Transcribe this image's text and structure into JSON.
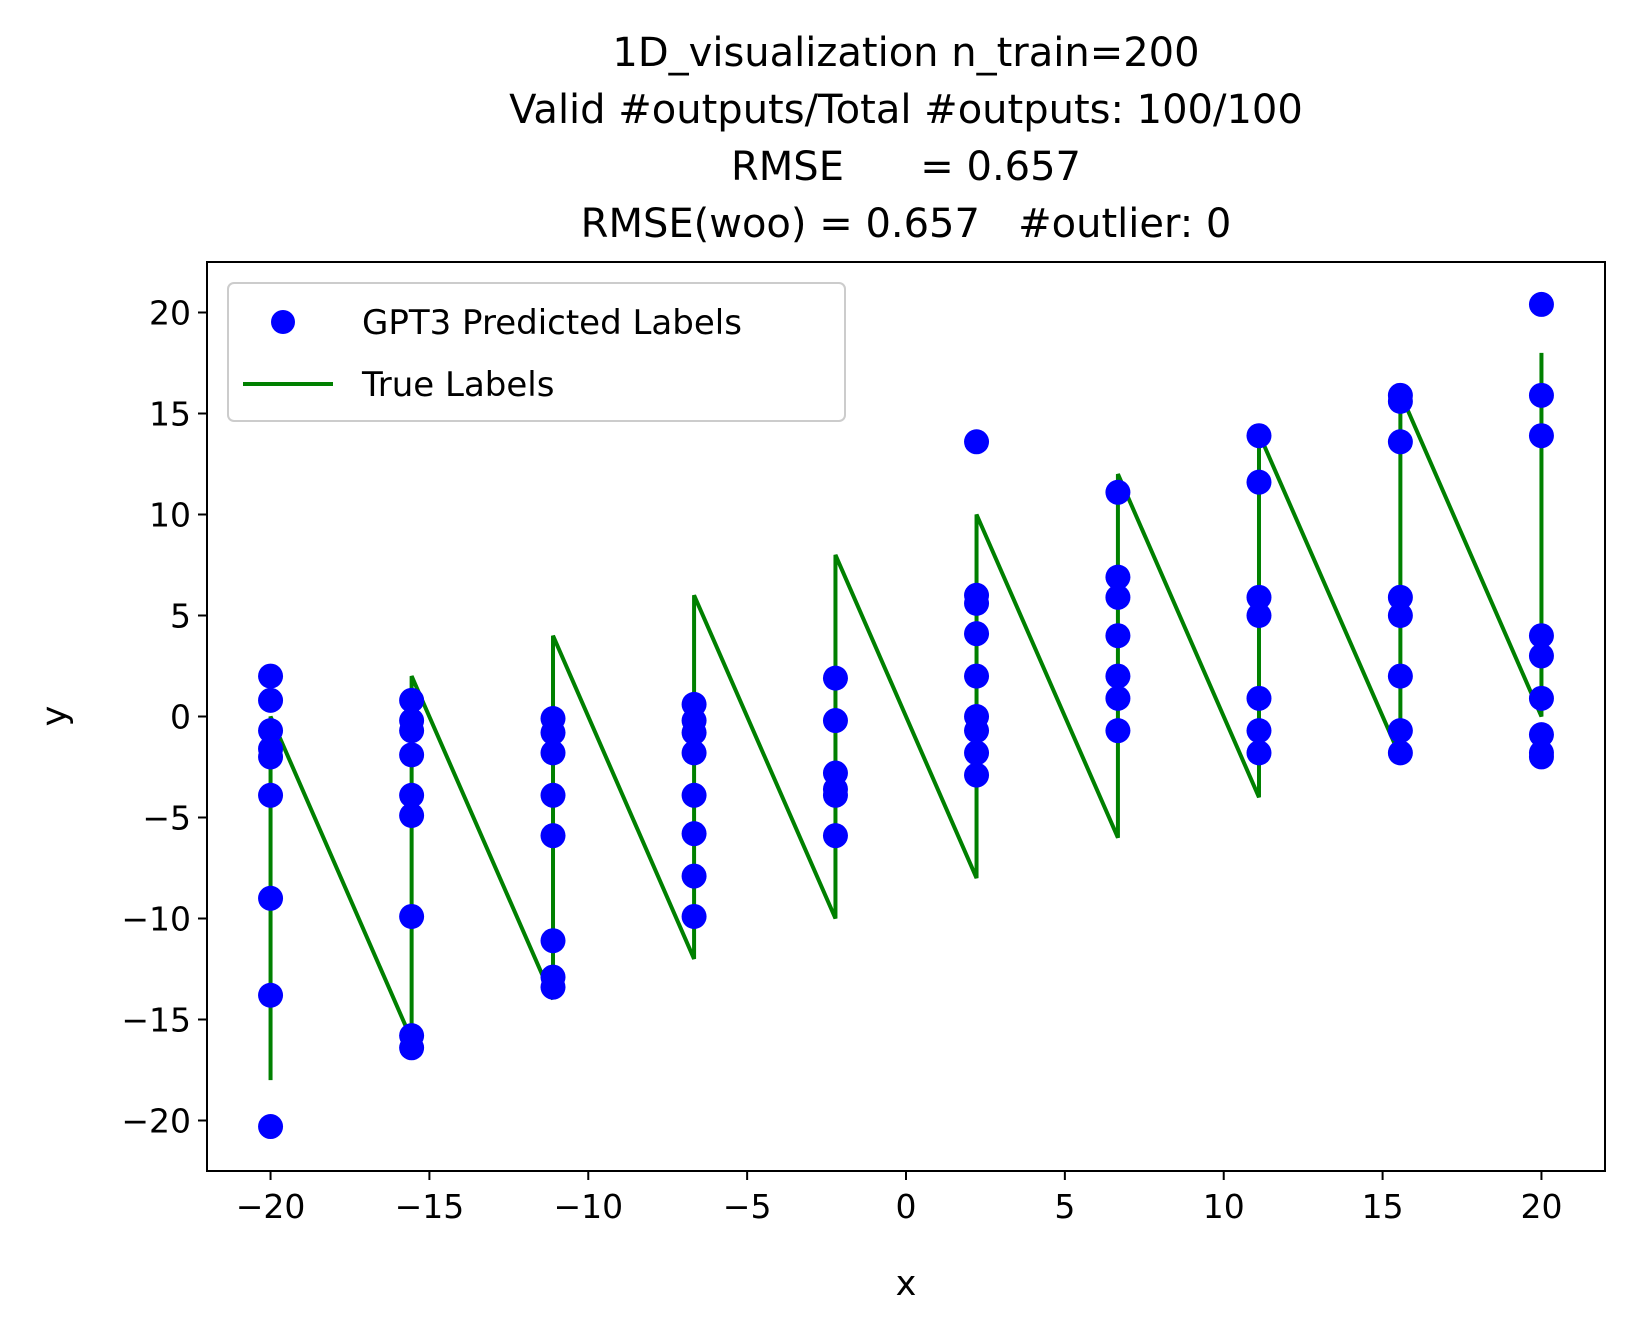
{
  "chart_data": {
    "type": "scatter",
    "title_lines": [
      "1D_visualization  n_train=200",
      "Valid #outputs/Total #outputs: 100/100",
      "RMSE      = 0.657",
      "RMSE(woo) = 0.657   #outlier: 0"
    ],
    "xlabel": "x",
    "ylabel": "y",
    "xlim": [
      -22,
      22
    ],
    "ylim": [
      -22.5,
      22.5
    ],
    "x_ticks": [
      {
        "value": -20,
        "label": "−20"
      },
      {
        "value": -15,
        "label": "−15"
      },
      {
        "value": -10,
        "label": "−10"
      },
      {
        "value": -5,
        "label": "−5"
      },
      {
        "value": 0,
        "label": "0"
      },
      {
        "value": 5,
        "label": "5"
      },
      {
        "value": 10,
        "label": "10"
      },
      {
        "value": 15,
        "label": "15"
      },
      {
        "value": 20,
        "label": "20"
      }
    ],
    "y_ticks": [
      {
        "value": -20,
        "label": "−20"
      },
      {
        "value": -15,
        "label": "−15"
      },
      {
        "value": -10,
        "label": "−10"
      },
      {
        "value": -5,
        "label": "−5"
      },
      {
        "value": 0,
        "label": "0"
      },
      {
        "value": 5,
        "label": "5"
      },
      {
        "value": 10,
        "label": "10"
      },
      {
        "value": 15,
        "label": "15"
      },
      {
        "value": 20,
        "label": "20"
      }
    ],
    "grid": false,
    "legend_position": "top-left",
    "series": [
      {
        "name": "GPT3 Predicted Labels",
        "kind": "scatter",
        "color": "#0000ff",
        "points": [
          [
            -20,
            2
          ],
          [
            -20,
            0.8
          ],
          [
            -20,
            -0.7
          ],
          [
            -20,
            -1.6
          ],
          [
            -20,
            -2
          ],
          [
            -20,
            -3.9
          ],
          [
            -20,
            -9
          ],
          [
            -20,
            -13.8
          ],
          [
            -20,
            -20.3
          ],
          [
            -15.56,
            0.8
          ],
          [
            -15.56,
            -0.2
          ],
          [
            -15.56,
            -0.7
          ],
          [
            -15.56,
            -1.9
          ],
          [
            -15.56,
            -3.9
          ],
          [
            -15.56,
            -4.9
          ],
          [
            -15.56,
            -9.9
          ],
          [
            -15.56,
            -15.8
          ],
          [
            -15.56,
            -16.4
          ],
          [
            -11.11,
            -0.1
          ],
          [
            -11.11,
            -0.8
          ],
          [
            -11.11,
            -1.8
          ],
          [
            -11.11,
            -3.9
          ],
          [
            -11.11,
            -5.9
          ],
          [
            -11.11,
            -11.1
          ],
          [
            -11.11,
            -12.9
          ],
          [
            -11.11,
            -13.4
          ],
          [
            -6.67,
            0.6
          ],
          [
            -6.67,
            -0.2
          ],
          [
            -6.67,
            -0.8
          ],
          [
            -6.67,
            -1.8
          ],
          [
            -6.67,
            -3.9
          ],
          [
            -6.67,
            -5.8
          ],
          [
            -6.67,
            -7.9
          ],
          [
            -6.67,
            -9.9
          ],
          [
            -2.22,
            1.9
          ],
          [
            -2.22,
            -0.2
          ],
          [
            -2.22,
            -2.8
          ],
          [
            -2.22,
            -3.6
          ],
          [
            -2.22,
            -3.9
          ],
          [
            -2.22,
            -5.9
          ],
          [
            2.22,
            13.6
          ],
          [
            2.22,
            6
          ],
          [
            2.22,
            5.6
          ],
          [
            2.22,
            4.1
          ],
          [
            2.22,
            2
          ],
          [
            2.22,
            0
          ],
          [
            2.22,
            -0.7
          ],
          [
            2.22,
            -1.8
          ],
          [
            2.22,
            -2.9
          ],
          [
            6.67,
            11.1
          ],
          [
            6.67,
            6.9
          ],
          [
            6.67,
            5.9
          ],
          [
            6.67,
            4
          ],
          [
            6.67,
            2
          ],
          [
            6.67,
            0.9
          ],
          [
            6.67,
            -0.7
          ],
          [
            11.11,
            13.9
          ],
          [
            11.11,
            11.6
          ],
          [
            11.11,
            5.9
          ],
          [
            11.11,
            5
          ],
          [
            11.11,
            0.9
          ],
          [
            11.11,
            -0.7
          ],
          [
            11.11,
            -1.8
          ],
          [
            15.56,
            15.9
          ],
          [
            15.56,
            15.6
          ],
          [
            15.56,
            13.6
          ],
          [
            15.56,
            5.9
          ],
          [
            15.56,
            5
          ],
          [
            15.56,
            2
          ],
          [
            15.56,
            -0.7
          ],
          [
            15.56,
            -1.8
          ],
          [
            20,
            20.4
          ],
          [
            20,
            15.9
          ],
          [
            20,
            13.9
          ],
          [
            20,
            4
          ],
          [
            20,
            3
          ],
          [
            20,
            0.9
          ],
          [
            20,
            -0.9
          ],
          [
            20,
            -1.8
          ],
          [
            20,
            -2
          ]
        ]
      },
      {
        "name": "True Labels",
        "kind": "line",
        "color": "#008000",
        "points": [
          [
            -20,
            -18
          ],
          [
            -20,
            0
          ],
          [
            -15.56,
            -16
          ],
          [
            -15.56,
            2
          ],
          [
            -11.11,
            -14
          ],
          [
            -11.11,
            4
          ],
          [
            -6.67,
            -12
          ],
          [
            -6.67,
            6
          ],
          [
            -2.22,
            -10
          ],
          [
            -2.22,
            8
          ],
          [
            2.22,
            -8
          ],
          [
            2.22,
            10
          ],
          [
            6.67,
            -6
          ],
          [
            6.67,
            12
          ],
          [
            11.11,
            -4
          ],
          [
            11.11,
            14
          ],
          [
            15.56,
            -2
          ],
          [
            15.56,
            16
          ],
          [
            20,
            0
          ],
          [
            20,
            18
          ]
        ]
      }
    ]
  }
}
